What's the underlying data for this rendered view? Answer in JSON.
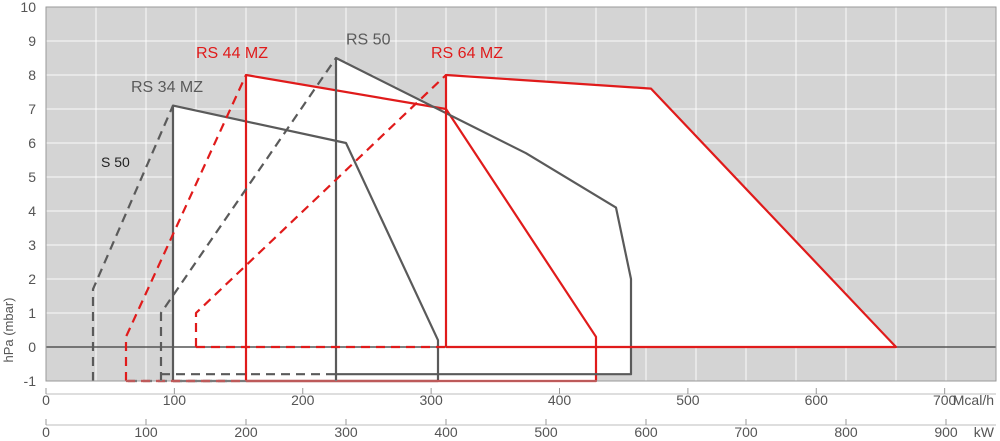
{
  "chart_data": {
    "type": "line",
    "title": "",
    "ylabel": "hPa (mbar)",
    "ylim": [
      -1,
      10
    ],
    "yticks": [
      "-1",
      "0",
      "1",
      "2",
      "3",
      "4",
      "5",
      "6",
      "7",
      "8",
      "9",
      "10"
    ],
    "x_kw": {
      "unit": "kW",
      "range": [
        0,
        950
      ],
      "ticks": [
        "0",
        "100",
        "200",
        "300",
        "400",
        "500",
        "600",
        "700",
        "800",
        "900"
      ]
    },
    "x_mcal": {
      "unit": "Mcal/h",
      "range": [
        0,
        740
      ],
      "ticks": [
        "0",
        "100",
        "200",
        "300",
        "400",
        "500",
        "600",
        "700"
      ]
    },
    "colors": {
      "gray": "#5a5a5a",
      "red": "#e01b1b",
      "shade": "#d4d4d4",
      "grid": "#ffffff",
      "zero_line": "#555555"
    },
    "annotations": [
      {
        "text": "S 50",
        "kw": 55,
        "hpa": 5.3
      }
    ],
    "series": [
      {
        "name": "RS 34 MZ",
        "color": "gray",
        "label_at": {
          "kw": 85,
          "hpa": 7.5
        },
        "dash_segments": [
          [
            [
              47,
              -1
            ],
            [
              47,
              1.7
            ],
            [
              127,
              7.1
            ]
          ],
          [
            [
              82,
              -1
            ],
            [
              182,
              -1
            ]
          ]
        ],
        "solid_segments": [
          [
            [
              127,
              -1
            ],
            [
              127,
              7.1
            ],
            [
              300,
              6.0
            ],
            [
              392,
              0.2
            ],
            [
              392,
              -1
            ],
            [
              300,
              -1
            ],
            [
              127,
              -1
            ]
          ]
        ]
      },
      {
        "name": "RS 44 MZ",
        "color": "red",
        "label_at": {
          "kw": 150,
          "hpa": 8.5
        },
        "dash_segments": [
          [
            [
              80,
              -1
            ],
            [
              80,
              0.3
            ],
            [
              200,
              8.0
            ]
          ],
          [
            [
              80,
              -1
            ],
            [
              200,
              -1
            ]
          ]
        ],
        "solid_segments": [
          [
            [
              200,
              -1
            ],
            [
              200,
              8.0
            ],
            [
              400,
              7.0
            ],
            [
              550,
              0.3
            ],
            [
              550,
              -1
            ],
            [
              200,
              -1
            ]
          ]
        ]
      },
      {
        "name": "RS 50",
        "color": "gray",
        "label_at": {
          "kw": 300,
          "hpa": 8.9
        },
        "dash_segments": [
          [
            [
              115,
              -1
            ],
            [
              115,
              1.0
            ],
            [
              290,
              8.5
            ]
          ],
          [
            [
              115,
              -0.8
            ],
            [
              290,
              -0.8
            ]
          ]
        ],
        "solid_segments": [
          [
            [
              290,
              -1
            ],
            [
              290,
              8.5
            ],
            [
              480,
              5.7
            ],
            [
              570,
              4.1
            ],
            [
              585,
              2.0
            ],
            [
              585,
              -0.8
            ],
            [
              290,
              -0.8
            ]
          ]
        ]
      },
      {
        "name": "RS 64 MZ",
        "color": "red",
        "label_at": {
          "kw": 385,
          "hpa": 8.5
        },
        "dash_segments": [
          [
            [
              150,
              0
            ],
            [
              150,
              1.0
            ],
            [
              400,
              8.0
            ]
          ],
          [
            [
              150,
              0
            ],
            [
              400,
              0
            ]
          ]
        ],
        "solid_segments": [
          [
            [
              400,
              0
            ],
            [
              400,
              8.0
            ],
            [
              605,
              7.6
            ],
            [
              850,
              0.0
            ],
            [
              400,
              0
            ]
          ]
        ]
      }
    ]
  }
}
